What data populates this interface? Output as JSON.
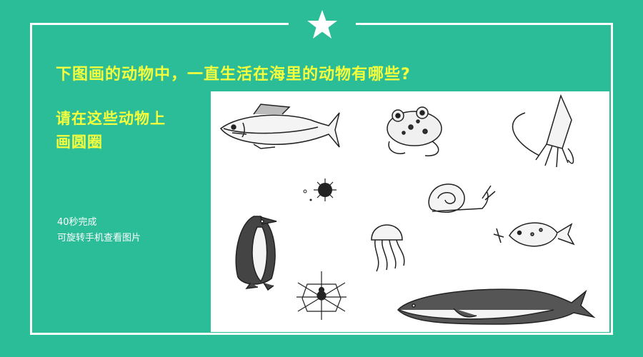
{
  "question": "下图画的动物中，一直生活在海里的动物有哪些?",
  "instruction": {
    "line1": "请在这些动物上",
    "line2": "画圆圈"
  },
  "notes": {
    "time_limit": "40秒完成",
    "rotate_hint": "可旋转手机查看图片"
  },
  "colors": {
    "background": "#2bbd98",
    "question_text": "#f5ff3c",
    "frame": "#ffffff"
  },
  "animals": [
    "tuna-fish",
    "frog",
    "squid",
    "sea-urchin",
    "snail",
    "goldfish",
    "penguin",
    "jellyfish",
    "spider",
    "whale"
  ]
}
